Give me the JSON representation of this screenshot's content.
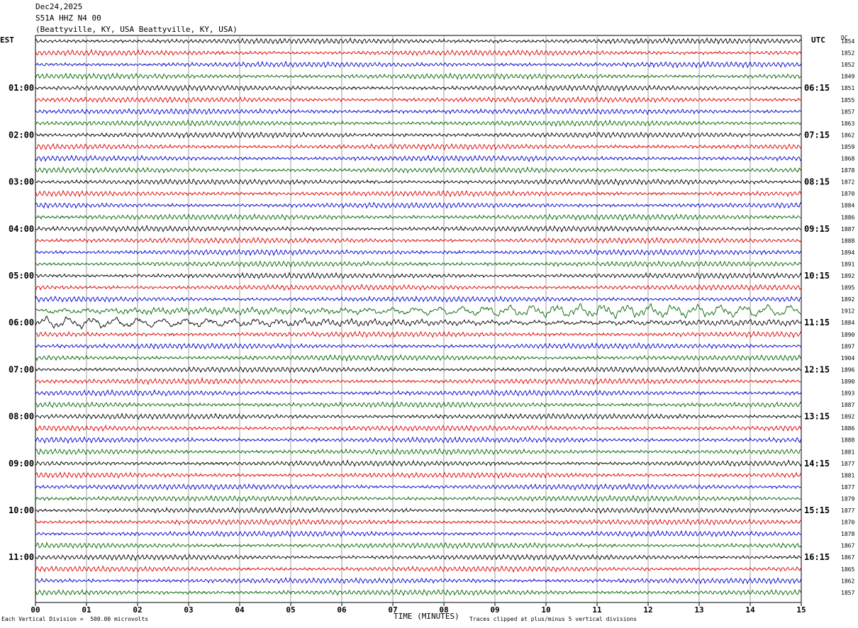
{
  "header": {
    "date": "Dec24,2025",
    "station": "S51A HHZ N4 00",
    "location": "(Beattyville, KY, USA Beattyville, KY, USA)"
  },
  "left_axis_label": "EST",
  "right_axis_label": "UTC",
  "right_corner_label": "DC",
  "footer": {
    "scale": "Each Vertical Division =  500.00 microvolts",
    "xlabel": "TIME (MINUTES)",
    "clip": "Traces clipped at plus/minus 5 vertical divisions"
  },
  "chart_data": {
    "type": "line",
    "title": "S51A HHZ N4 00",
    "xlabel": "TIME (MINUTES)",
    "xlim": [
      0,
      15
    ],
    "x_ticks": [
      "00",
      "01",
      "02",
      "03",
      "04",
      "05",
      "06",
      "07",
      "08",
      "09",
      "10",
      "11",
      "12",
      "13",
      "14",
      "15"
    ],
    "left_hour_labels": [
      "01:00",
      "02:00",
      "03:00",
      "04:00",
      "05:00",
      "06:00",
      "07:00",
      "08:00",
      "09:00",
      "10:00",
      "11:00"
    ],
    "right_hour_labels": [
      "06:15",
      "07:15",
      "08:15",
      "09:15",
      "10:15",
      "11:15",
      "12:15",
      "13:15",
      "14:15",
      "15:15",
      "16:15"
    ],
    "trace_colors": [
      "#000000",
      "#dd0000",
      "#0000cc",
      "#006600"
    ],
    "dc_offsets": [
      1854,
      1852,
      1852,
      1849,
      1851,
      1855,
      1857,
      1863,
      1862,
      1859,
      1868,
      1878,
      1872,
      1870,
      1884,
      1886,
      1887,
      1888,
      1894,
      1891,
      1892,
      1895,
      1892,
      1912,
      1884,
      1890,
      1897,
      1904,
      1896,
      1890,
      1893,
      1887,
      1892,
      1886,
      1888,
      1881,
      1877,
      1881,
      1877,
      1879,
      1877,
      1870,
      1878,
      1867,
      1867,
      1865,
      1862,
      1857
    ],
    "large_event_traces": [
      23,
      24
    ]
  }
}
